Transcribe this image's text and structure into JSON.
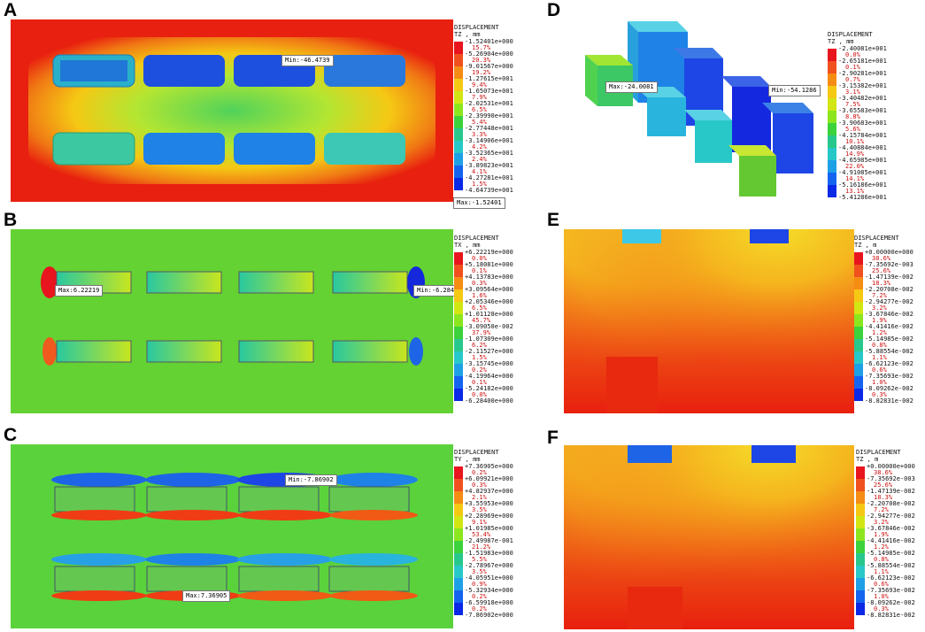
{
  "panels": [
    {
      "id": "A",
      "legend": {
        "title": "DISPLACEMENT",
        "unit": "TZ , mm",
        "ticks": [
          "-1.52401e+000",
          "-5.26904e+000",
          "-9.01567e+000",
          "-1.27615e+001",
          "-1.65073e+001",
          "-2.02531e+001",
          "-2.39990e+001",
          "-2.77448e+001",
          "-3.14906e+001",
          "-3.52365e+001",
          "-3.89823e+001",
          "-4.27281e+001",
          "-4.64739e+001"
        ],
        "percents": [
          "15.7%",
          "20.3%",
          "19.2%",
          "9.4%",
          "7.9%",
          "6.5%",
          "5.4%",
          "3.3%",
          "4.2%",
          "2.4%",
          "4.1%",
          "1.5%"
        ]
      },
      "callouts": [
        {
          "text": "Min:-46.4739"
        },
        {
          "text": "Max:-1.52401"
        }
      ]
    },
    {
      "id": "B",
      "legend": {
        "title": "DISPLACEMENT",
        "unit": "TX , mm",
        "ticks": [
          "+6.22219e+000",
          "+5.18081e+000",
          "+4.13783e+000",
          "+3.09564e+000",
          "+2.05346e+000",
          "+1.01128e+000",
          "-3.09050e-002",
          "-1.07309e+000",
          "-2.11527e+000",
          "-3.15745e+000",
          "-4.19964e+000",
          "-5.24182e+000",
          "-6.28400e+000"
        ],
        "percents": [
          "0.0%",
          "0.1%",
          "0.3%",
          "1.6%",
          "6.5%",
          "45.7%",
          "37.9%",
          "6.2%",
          "1.5%",
          "0.2%",
          "0.1%",
          "0.0%"
        ]
      },
      "callouts": [
        {
          "text": "Max:6.22219"
        },
        {
          "text": "Min:-6.284"
        }
      ]
    },
    {
      "id": "C",
      "legend": {
        "title": "DISPLACEMENT",
        "unit": "TY , mm",
        "ticks": [
          "+7.36905e+000",
          "+6.09921e+000",
          "+4.82937e+000",
          "+3.55953e+000",
          "+2.28969e+000",
          "+1.01985e+000",
          "-2.49987e-001",
          "-1.51983e+000",
          "-2.78967e+000",
          "-4.05951e+000",
          "-5.32934e+000",
          "-6.59918e+000",
          "-7.86902e+000"
        ],
        "percents": [
          "0.2%",
          "0.3%",
          "2.1%",
          "3.5%",
          "9.1%",
          "53.4%",
          "21.2%",
          "5.5%",
          "3.5%",
          "0.9%",
          "0.2%",
          "0.2%"
        ]
      },
      "callouts": [
        {
          "text": "Min:-7.86902"
        },
        {
          "text": "Max:7.36905"
        }
      ]
    },
    {
      "id": "D",
      "legend": {
        "title": "DISPLACEMENT",
        "unit": "TZ , mm",
        "ticks": [
          "-2.40081e+001",
          "-2.65181e+001",
          "-2.90281e+001",
          "-3.15382e+001",
          "-3.40482e+001",
          "-3.65583e+001",
          "-3.90683e+001",
          "-4.15784e+001",
          "-4.40884e+001",
          "-4.65985e+001",
          "-4.91085e+001",
          "-5.16186e+001",
          "-5.41286e+001"
        ],
        "percents": [
          "0.0%",
          "0.1%",
          "0.7%",
          "3.1%",
          "7.5%",
          "8.8%",
          "5.6%",
          "10.1%",
          "14.9%",
          "22.0%",
          "14.1%",
          "13.1%"
        ]
      },
      "callouts": [
        {
          "text": "Max:-24.0081"
        },
        {
          "text": "Min:-54.1286"
        }
      ]
    },
    {
      "id": "E",
      "legend": {
        "title": "DISPLACEMENT",
        "unit": "TZ , m",
        "ticks": [
          "+0.00000e+000",
          "-7.35692e-003",
          "-1.47139e-002",
          "-2.20708e-002",
          "-2.94277e-002",
          "-3.67846e-002",
          "-4.41416e-002",
          "-5.14985e-002",
          "-5.88554e-002",
          "-6.62123e-002",
          "-7.35693e-002",
          "-8.09262e-002",
          "-8.82831e-002"
        ],
        "percents": [
          "38.6%",
          "25.6%",
          "18.3%",
          "7.2%",
          "3.2%",
          "1.9%",
          "1.2%",
          "0.8%",
          "1.1%",
          "0.6%",
          "1.0%",
          "0.3%"
        ]
      },
      "callouts": []
    },
    {
      "id": "F",
      "legend": {
        "title": "DISPLACEMENT",
        "unit": "TZ , m",
        "ticks": [
          "+0.00000e+000",
          "-7.35692e-003",
          "-1.47139e-002",
          "-2.20708e-002",
          "-2.94277e-002",
          "-3.67846e-002",
          "-4.41416e-002",
          "-5.14985e-002",
          "-5.88554e-002",
          "-6.62123e-002",
          "-7.35693e-002",
          "-8.09262e-002",
          "-8.82831e-002"
        ],
        "percents": [
          "38.6%",
          "25.6%",
          "18.3%",
          "7.2%",
          "3.2%",
          "1.9%",
          "1.2%",
          "0.8%",
          "1.1%",
          "0.6%",
          "1.0%",
          "0.3%"
        ]
      },
      "callouts": []
    }
  ],
  "colors": {
    "scale": [
      "#e8141e",
      "#f0501e",
      "#f58c14",
      "#f5c814",
      "#d2e614",
      "#8ce61e",
      "#3cd23c",
      "#28c88c",
      "#28c8c8",
      "#1ea0e6",
      "#1464f0",
      "#0a28e6"
    ]
  }
}
